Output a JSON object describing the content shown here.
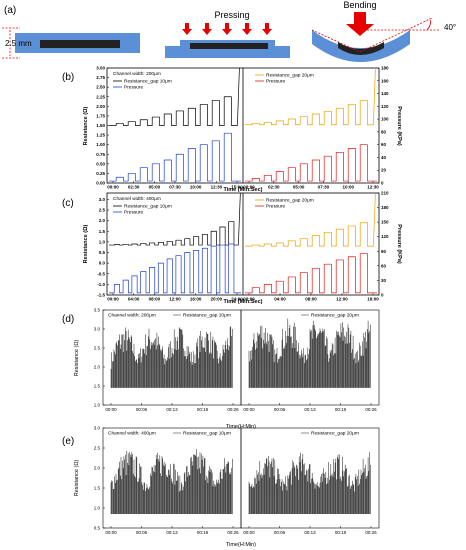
{
  "figure": {
    "panel_letters": [
      "(a)",
      "(b)",
      "(c)",
      "(d)",
      "(e)"
    ],
    "schematic": {
      "height_label": "2.5 mm",
      "pressing_label": "Pressing",
      "bending_label": "Bending",
      "angle_label": "40°"
    }
  },
  "chart_data": [
    {
      "panel": "b",
      "type": "line",
      "xlabel": "Time (Min:Sec)",
      "ylabel_left": "Resistance (Ω)",
      "ylabel_right": "Pressure (KPa)",
      "left_ticks": [
        "0.00",
        "0.25",
        "0.50",
        "0.75",
        "1.00",
        "1.25",
        "1.50",
        "1.75",
        "2.00",
        "2.25",
        "2.50",
        "2.75",
        "3.00"
      ],
      "right_ticks": [
        "0",
        "20",
        "40",
        "60",
        "80",
        "100",
        "120",
        "140",
        "160",
        "180"
      ],
      "ylim_left": [
        0,
        3.0
      ],
      "ylim_right": [
        0,
        180
      ],
      "left_annotation": "Channel width: 200μm",
      "left_xticks": [
        "00:00",
        "02:30",
        "05:00",
        "07:30",
        "10:00",
        "12:30",
        "15:00"
      ],
      "right_xticks": [
        "00:00",
        "02:30",
        "05:00",
        "07:30",
        "10:00",
        "12:30"
      ],
      "left_legend": [
        "Resistance_gap 10μm",
        "Pressure"
      ],
      "right_legend": [
        "Resistance_gap 20μm",
        "Pressure"
      ],
      "pulses": 10,
      "series": [
        {
          "name": "Resistance_gap 10μm",
          "color": "#000000",
          "base": 1.5,
          "peaks": [
            1.55,
            1.6,
            1.65,
            1.72,
            1.8,
            1.88,
            1.95,
            2.05,
            2.15,
            2.25
          ],
          "final_spike": 3.0
        },
        {
          "name": "Pressure",
          "color": "#1f3fd8",
          "base": 0.05,
          "peaks": [
            0.15,
            0.25,
            0.4,
            0.5,
            0.6,
            0.75,
            0.9,
            1.0,
            1.1,
            1.3
          ]
        },
        {
          "name": "Resistance_gap 20μm",
          "color": "#f0a000",
          "base": 1.52,
          "peaks": [
            1.55,
            1.58,
            1.62,
            1.67,
            1.73,
            1.8,
            1.87,
            1.95,
            2.05,
            2.15
          ],
          "final_spike": 3.0
        },
        {
          "name": "Pressure",
          "color": "#e01818",
          "base": 0.05,
          "peaks": [
            0.12,
            0.2,
            0.3,
            0.4,
            0.5,
            0.6,
            0.7,
            0.8,
            0.9,
            1.0
          ]
        }
      ]
    },
    {
      "panel": "c",
      "type": "line",
      "xlabel": "Time (Min:Sec)",
      "ylabel_left": "Resistance (Ω)",
      "ylabel_right": "Pressure (KPa)",
      "left_ticks": [
        "-1.5",
        "-1.0",
        "-0.5",
        "0.0",
        "0.5",
        "1.0",
        "1.5",
        "2.0",
        "2.5",
        "3.0"
      ],
      "right_ticks": [
        "0",
        "30",
        "60",
        "90",
        "120",
        "150",
        "180",
        "210"
      ],
      "ylim_left": [
        -1.5,
        3.3
      ],
      "ylim_right": [
        0,
        210
      ],
      "left_annotation": "Channel width: 400μm",
      "left_xticks": [
        "00:00",
        "04:00",
        "08:00",
        "12:00",
        "16:00",
        "20:00",
        "24:00"
      ],
      "right_xticks": [
        "00:00",
        "04:00",
        "08:00",
        "12:00",
        "16:00"
      ],
      "left_legend": [
        "Resistance_gap 10μm",
        "Pressure"
      ],
      "right_legend": [
        "Resistance_gap 20μm",
        "Pressure"
      ],
      "series": [
        {
          "name": "Resistance_gap 10μm",
          "color": "#000000",
          "base": 0.85,
          "peaks": [
            0.87,
            0.88,
            0.9,
            0.92,
            0.95,
            0.98,
            1.02,
            1.08,
            1.15,
            1.25,
            1.35,
            1.5,
            1.7,
            1.95
          ],
          "final_spike": 3.3
        },
        {
          "name": "Pressure",
          "color": "#1f3fd8",
          "base": -1.4,
          "peaks": [
            -1.0,
            -0.8,
            -0.6,
            -0.4,
            -0.2,
            0.0,
            0.2,
            0.35,
            0.5,
            0.6,
            0.7,
            0.8,
            0.85,
            0.9
          ]
        },
        {
          "name": "Resistance_gap 20μm",
          "color": "#f0a000",
          "base": 0.8,
          "peaks": [
            0.85,
            0.9,
            0.95,
            1.05,
            1.15,
            1.3,
            1.45,
            1.6,
            1.75,
            1.9
          ],
          "final_spike": 3.3
        },
        {
          "name": "Pressure",
          "color": "#e01818",
          "base": -1.4,
          "peaks": [
            -1.15,
            -1.0,
            -0.85,
            -0.65,
            -0.45,
            -0.25,
            -0.05,
            0.15,
            0.3,
            0.45
          ]
        }
      ]
    },
    {
      "panel": "d",
      "type": "line",
      "xlabel": "Time(H:Min)",
      "ylabel": "Resistance (Ω)",
      "y_ticks": [
        "1.0",
        "1.5",
        "2.0",
        "2.5",
        "3.0",
        "3.5"
      ],
      "ylim": [
        1.0,
        3.5
      ],
      "left_annotation": "Channel width: 200μm",
      "left_legend": "Resistance_gap 10μm",
      "right_legend": "Resistance_gap 20μm",
      "left_xticks": [
        "00:00",
        "00:06",
        "00:13",
        "00:19",
        "00:26"
      ],
      "right_xticks": [
        "00:00",
        "00:06",
        "00:13",
        "00:19",
        "00:26"
      ],
      "series": [
        {
          "name": "Resistance_gap 10μm",
          "color": "#000000",
          "min": 1.45,
          "max": 3.1,
          "waves": 4.5
        },
        {
          "name": "Resistance_gap 20μm",
          "color": "#000000",
          "min": 1.45,
          "max": 3.3,
          "waves": 4.5
        }
      ]
    },
    {
      "panel": "e",
      "type": "line",
      "xlabel": "Time(H:Min)",
      "ylabel": "Resistance (Ω)",
      "y_ticks": [
        "0.5",
        "1.0",
        "1.5",
        "2.0",
        "2.5",
        "3.0"
      ],
      "ylim": [
        0.5,
        3.0
      ],
      "left_annotation": "Channel width: 400μm",
      "left_legend": "Resistance_gap 10μm",
      "right_legend": "Resistance_gap 20μm",
      "left_xticks": [
        "00:00",
        "00:06",
        "00:13",
        "00:19",
        "00:26"
      ],
      "right_xticks": [
        "00:00",
        "00:06",
        "00:13",
        "00:19",
        "00:26"
      ],
      "series": [
        {
          "name": "Resistance_gap 10μm",
          "color": "#000000",
          "min": 0.85,
          "max": 2.5,
          "waves": 3.5
        },
        {
          "name": "Resistance_gap 20μm",
          "color": "#000000",
          "min": 0.85,
          "max": 2.4,
          "waves": 3.5
        }
      ]
    }
  ]
}
